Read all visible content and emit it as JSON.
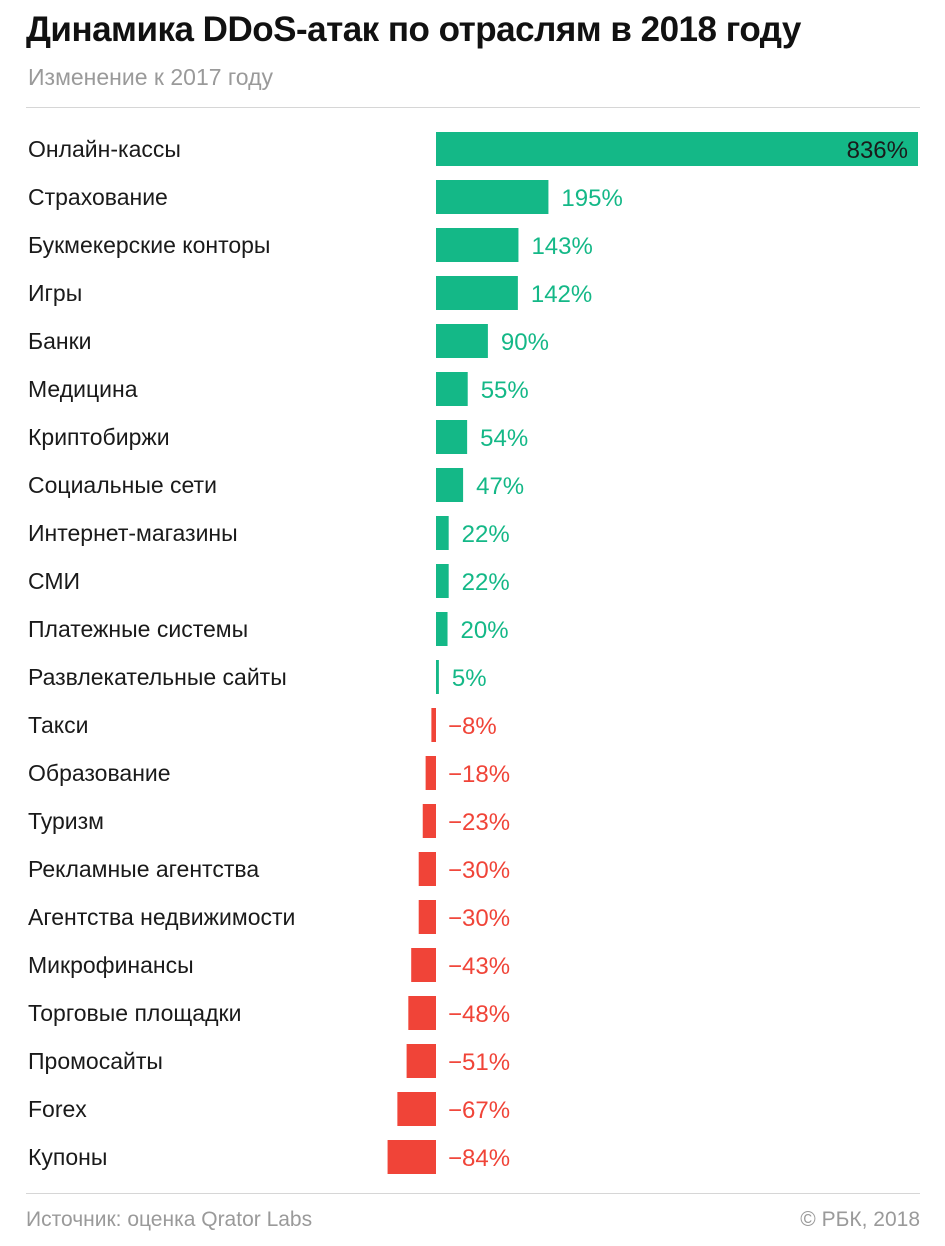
{
  "title": "Динамика DDoS-атак по отраслям в 2018 году",
  "subtitle": "Изменение к 2017 году",
  "source": "Источник: оценка Qrator Labs",
  "credit": "© РБК, 2018",
  "colors": {
    "positive": "#14b887",
    "negative": "#f04438",
    "inside_label": "#1a1a1a",
    "category_text": "#1a1a1a"
  },
  "chart_data": {
    "type": "bar",
    "orientation": "horizontal",
    "unit": "%",
    "categories": [
      "Онлайн-кассы",
      "Страхование",
      "Букмекерские конторы",
      "Игры",
      "Банки",
      "Медицина",
      "Криптобиржи",
      "Социальные сети",
      "Интернет-магазины",
      "СМИ",
      "Платежные системы",
      "Развлекательные сайты",
      "Такси",
      "Образование",
      "Туризм",
      "Рекламные агентства",
      "Агентства недвижимости",
      "Микрофинансы",
      "Торговые площадки",
      "Промосайты",
      "Forex",
      "Купоны"
    ],
    "values": [
      836,
      195,
      143,
      142,
      90,
      55,
      54,
      47,
      22,
      22,
      20,
      5,
      -8,
      -18,
      -23,
      -30,
      -30,
      -43,
      -48,
      -51,
      -67,
      -84
    ],
    "labels": [
      "836%",
      "195%",
      "143%",
      "142%",
      "90%",
      "55%",
      "54%",
      "47%",
      "22%",
      "22%",
      "20%",
      "5%",
      "−8%",
      "−18%",
      "−23%",
      "−30%",
      "−30%",
      "−43%",
      "−48%",
      "−51%",
      "−67%",
      "−84%"
    ],
    "xlim": [
      -84,
      836
    ],
    "grid": false,
    "legend": "none"
  }
}
